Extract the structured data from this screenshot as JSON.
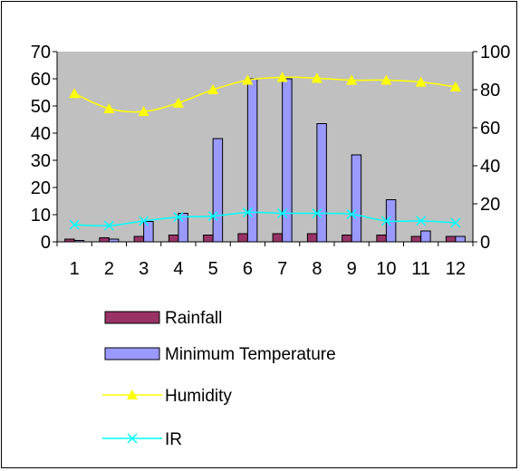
{
  "chart_data": {
    "type": "bar",
    "title": "",
    "xlabel": "",
    "ylabel": "",
    "categories": [
      "1",
      "2",
      "3",
      "4",
      "5",
      "6",
      "7",
      "8",
      "9",
      "10",
      "11",
      "12"
    ],
    "ylim_left": [
      0,
      70
    ],
    "yticks_left": [
      "0",
      "10",
      "20",
      "30",
      "40",
      "50",
      "60",
      "70"
    ],
    "ylim_right": [
      0,
      100
    ],
    "yticks_right": [
      "0",
      "20",
      "40",
      "60",
      "80",
      "100"
    ],
    "grid": false,
    "legend_position": "bottom",
    "series": [
      {
        "name": "Rainfall",
        "type": "bar",
        "axis": "left",
        "color": "#993366",
        "values": [
          1,
          1.5,
          2,
          2.5,
          2.5,
          3,
          3,
          3,
          2.5,
          2.5,
          2,
          2
        ]
      },
      {
        "name": "Minimum Temperature",
        "type": "bar",
        "axis": "left",
        "color": "#9999ff",
        "values": [
          0.5,
          1,
          7.5,
          10.5,
          38,
          60,
          60,
          43.5,
          32,
          15.5,
          4,
          2
        ]
      },
      {
        "name": "Humidity",
        "type": "line",
        "axis": "right",
        "color": "#ffff00",
        "marker": "triangle",
        "values": [
          78,
          70,
          68.5,
          73,
          80,
          85,
          86.5,
          86,
          85,
          85,
          84,
          81.5
        ]
      },
      {
        "name": "IR",
        "type": "line",
        "axis": "right",
        "color": "#00ffff",
        "marker": "x",
        "values": [
          9,
          8.5,
          11,
          13,
          13.5,
          15.5,
          15,
          15,
          14.5,
          11,
          11,
          10
        ]
      }
    ],
    "colors": {
      "plot_background": "#c0c0c0",
      "axis": "#000000"
    }
  }
}
